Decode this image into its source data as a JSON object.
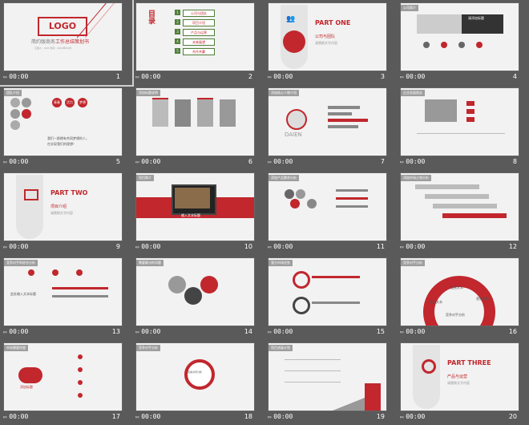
{
  "slides": [
    {
      "time": "00:00",
      "num": "1",
      "logo": "LOGO",
      "title_a": "简约版商务",
      "title_b": "工作总结策划书",
      "meta": "汇报人：XXX 时间：20XX年XX月"
    },
    {
      "time": "00:00",
      "num": "2",
      "heading": "目录",
      "items": [
        "公司与团队",
        "项目介绍",
        "产品与运营",
        "未来展望",
        "合作共赢"
      ]
    },
    {
      "time": "00:00",
      "num": "3",
      "part": "PART ONE",
      "label": "公司与团队",
      "sub": "请替换文字内容"
    },
    {
      "time": "00:00",
      "num": "4",
      "tag": "公司简介",
      "photo_text": "请添加标题"
    },
    {
      "time": "00:00",
      "num": "5",
      "tag": "团队介绍",
      "chips": [
        "青春",
        "活力",
        "梦想"
      ],
      "text_red": "我们一群拥有共同梦想的人，",
      "text_red2": "在实现我们的理想！"
    },
    {
      "time": "00:00",
      "num": "6",
      "tag": "添加标题说明"
    },
    {
      "time": "00:00",
      "num": "7",
      "tag": "添加核心人物介绍",
      "brand": "DAIEN"
    },
    {
      "time": "00:00",
      "num": "8",
      "tag": "企业发展理念"
    },
    {
      "time": "00:00",
      "num": "9",
      "part": "PART TWO",
      "label": "项目介绍",
      "sub": "请替换文字内容"
    },
    {
      "time": "00:00",
      "num": "10",
      "tag": "项目简介",
      "banner": "输入文本标题"
    },
    {
      "time": "00:00",
      "num": "11",
      "tag": "添加产品需求分析"
    },
    {
      "time": "00:00",
      "num": "12",
      "tag": "添加市场占领分析"
    },
    {
      "time": "00:00",
      "num": "13",
      "tag": "竞争对手的综合分析",
      "sub": "此处输入文本标题"
    },
    {
      "time": "00:00",
      "num": "14",
      "tag": "需要解决的问题"
    },
    {
      "time": "00:00",
      "num": "15",
      "tag": "我方市场优势"
    },
    {
      "time": "00:00",
      "num": "16",
      "tag": "竞争对手分析",
      "labels": [
        "输入文本",
        "运营文本",
        "公司实力",
        "营销策略"
      ],
      "base": "竞争对手分析"
    },
    {
      "time": "00:00",
      "num": "17",
      "tag": "市场需要挖掘",
      "cloud": "添加标题"
    },
    {
      "time": "00:00",
      "num": "18",
      "tag": "竞争对手分析",
      "center": "竞争对手分析"
    },
    {
      "time": "00:00",
      "num": "19",
      "tag": "项目进展计划"
    },
    {
      "time": "00:00",
      "num": "20",
      "part": "PART THREE",
      "label": "产品与运营",
      "sub": "请替换文字内容"
    }
  ],
  "colors": {
    "accent": "#c1272d",
    "panel": "#5a5a5a",
    "slide_bg": "#f2f2f2"
  },
  "footer_icon": "film-strip-icon"
}
